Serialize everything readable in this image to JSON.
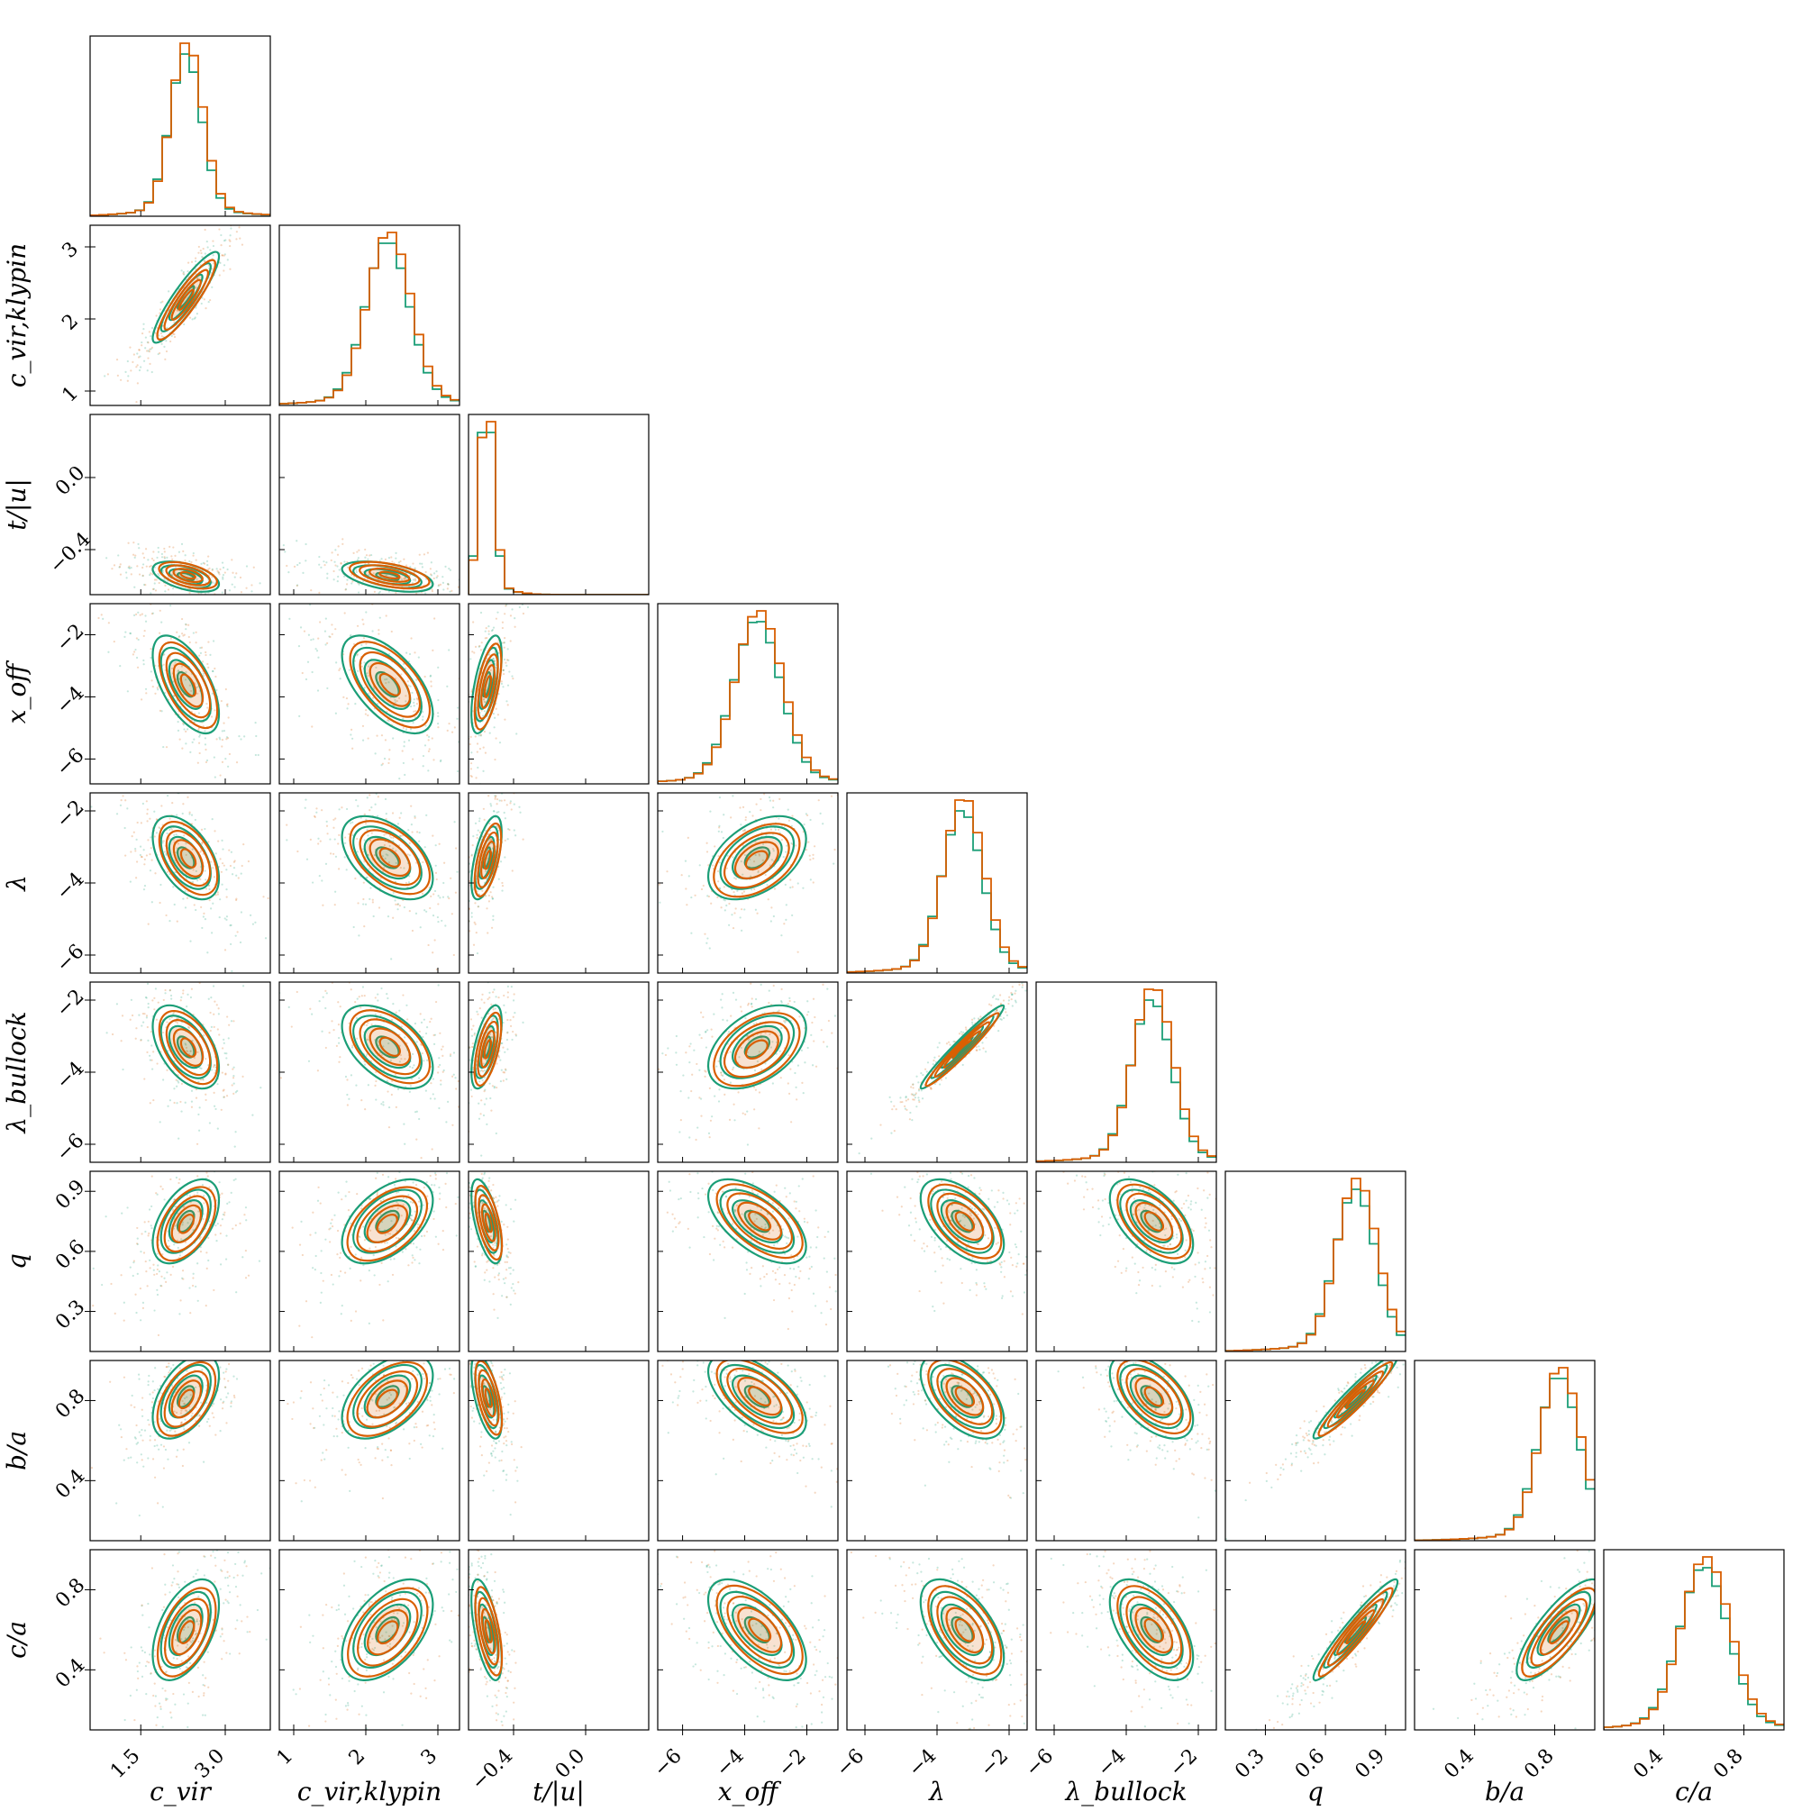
{
  "chart_data": {
    "type": "corner",
    "title": "",
    "grid": false,
    "colors": {
      "green": "#1b9e77",
      "orange": "#d95f02"
    },
    "series": [
      {
        "name": "",
        "color": "#1b9e77"
      },
      {
        "name": "",
        "color": "#d95f02"
      }
    ],
    "parameters": [
      {
        "key": "cvir",
        "label": "c_vir",
        "range": [
          0.6,
          3.8
        ],
        "ticks": [
          1.5,
          3.0
        ],
        "tick_labels": [
          "1.5",
          "3.0"
        ],
        "mean": 2.3,
        "sd": 0.28
      },
      {
        "key": "cvir_klypin",
        "label": "c_vir,klypin",
        "range": [
          0.8,
          3.3
        ],
        "ticks": [
          1,
          2,
          3
        ],
        "tick_labels": [
          "1",
          "2",
          "3"
        ],
        "mean": 2.3,
        "sd": 0.3
      },
      {
        "key": "t_u",
        "label": "t/|u|",
        "range": [
          -0.65,
          0.35
        ],
        "ticks": [
          -0.4,
          0.0
        ],
        "tick_labels": [
          "−0.4",
          "0.0"
        ],
        "mean": -0.55,
        "sd": 0.04
      },
      {
        "key": "xoff",
        "label": "x_off",
        "range": [
          -6.8,
          -1.0
        ],
        "ticks": [
          -6,
          -4,
          -2
        ],
        "tick_labels": [
          "−6",
          "−4",
          "−2"
        ],
        "mean": -3.6,
        "sd": 0.75
      },
      {
        "key": "lambda",
        "label": "λ",
        "range": [
          -6.5,
          -1.5
        ],
        "ticks": [
          -6,
          -4,
          -2
        ],
        "tick_labels": [
          "−6",
          "−4",
          "−2"
        ],
        "mean": -3.3,
        "sd": 0.55
      },
      {
        "key": "lambda_bullock",
        "label": "λ_bullock",
        "range": [
          -6.5,
          -1.5
        ],
        "ticks": [
          -6,
          -4,
          -2
        ],
        "tick_labels": [
          "−6",
          "−4",
          "−2"
        ],
        "mean": -3.3,
        "sd": 0.55
      },
      {
        "key": "q",
        "label": "q",
        "range": [
          0.1,
          1.0
        ],
        "ticks": [
          0.3,
          0.6,
          0.9
        ],
        "tick_labels": [
          "0.3",
          "0.6",
          "0.9"
        ],
        "mean": 0.75,
        "sd": 0.1
      },
      {
        "key": "b_a",
        "label": "b/a",
        "range": [
          0.1,
          1.0
        ],
        "ticks": [
          0.4,
          0.8
        ],
        "tick_labels": [
          "0.4",
          "0.8"
        ],
        "mean": 0.82,
        "sd": 0.1
      },
      {
        "key": "c_a",
        "label": "c/a",
        "range": [
          0.1,
          1.0
        ],
        "ticks": [
          0.4,
          0.8
        ],
        "tick_labels": [
          "0.4",
          "0.8"
        ],
        "mean": 0.6,
        "sd": 0.12
      }
    ],
    "correlations": {
      "1_0": 0.9,
      "2_0": -0.5,
      "2_1": -0.5,
      "3_0": -0.6,
      "3_1": -0.6,
      "3_2": 0.6,
      "4_0": -0.5,
      "4_1": -0.5,
      "4_2": 0.6,
      "4_3": 0.45,
      "5_0": -0.5,
      "5_1": -0.5,
      "5_2": 0.6,
      "5_3": 0.45,
      "5_4": 0.97,
      "6_0": 0.5,
      "6_1": 0.5,
      "6_2": -0.6,
      "6_3": -0.6,
      "6_4": -0.55,
      "6_5": -0.55,
      "7_0": 0.5,
      "7_1": 0.5,
      "7_2": -0.6,
      "7_3": -0.6,
      "7_4": -0.55,
      "7_5": -0.55,
      "7_6": 0.95,
      "8_0": 0.5,
      "8_1": 0.5,
      "8_2": -0.6,
      "8_3": -0.6,
      "8_4": -0.55,
      "8_5": -0.55,
      "8_6": 0.95,
      "8_7": 0.8
    }
  }
}
